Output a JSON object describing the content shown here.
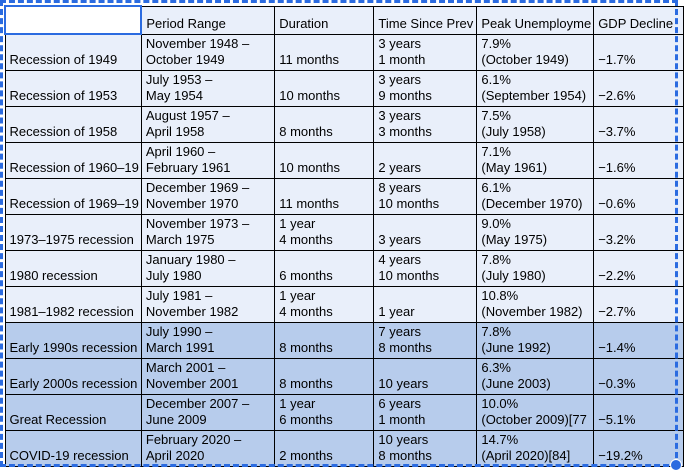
{
  "ui": {
    "selection_accent_color": "#2B6BE0",
    "light_row_fill": "#E9EFFA",
    "dark_selected_row_fill": "#B7CCEC",
    "grid_color": "#000000",
    "active_cell_value": "",
    "fill_handle": "selection-fill-handle"
  },
  "table": {
    "headers": [
      "",
      "Period Range",
      "Duration",
      "Time Since Prev",
      "Peak Unemployme",
      "GDP Decline"
    ],
    "rows": [
      {
        "dark": false,
        "cells": [
          "Recession of 1949",
          "November 1948 –\nOctober 1949",
          "11 months",
          "3 years\n1 month",
          "7.9%\n(October 1949)",
          "−1.7%"
        ]
      },
      {
        "dark": false,
        "cells": [
          "Recession of 1953",
          "July 1953 –\nMay 1954",
          "10 months",
          "3 years\n9 months",
          "6.1%\n(September 1954)",
          "−2.6%"
        ]
      },
      {
        "dark": false,
        "cells": [
          "Recession of 1958",
          "August 1957 –\nApril 1958",
          "8 months",
          "3 years\n3 months",
          "7.5%\n(July 1958)",
          "−3.7%"
        ]
      },
      {
        "dark": false,
        "cells": [
          "Recession of 1960–19",
          "April 1960 –\nFebruary 1961",
          "10 months",
          "2 years",
          "7.1%\n(May 1961)",
          "−1.6%"
        ]
      },
      {
        "dark": false,
        "cells": [
          "Recession of 1969–19",
          "December 1969 –\nNovember 1970",
          "11 months",
          "8 years\n10 months",
          "6.1%\n(December 1970)",
          "−0.6%"
        ]
      },
      {
        "dark": false,
        "cells": [
          "1973–1975 recession",
          "November 1973 –\nMarch 1975",
          "1 year\n4 months",
          "3 years",
          "9.0%\n(May 1975)",
          "−3.2%"
        ]
      },
      {
        "dark": false,
        "cells": [
          "1980 recession",
          "January 1980 –\nJuly 1980",
          "6 months",
          "4 years\n10 months",
          "7.8%\n(July 1980)",
          "−2.2%"
        ]
      },
      {
        "dark": false,
        "cells": [
          "1981–1982 recession",
          "July 1981 –\nNovember 1982",
          "1 year\n4 months",
          "1 year",
          "10.8%\n(November 1982)",
          "−2.7%"
        ]
      },
      {
        "dark": true,
        "cells": [
          "Early 1990s recession",
          "July 1990 –\nMarch 1991",
          "8 months",
          "7 years\n8 months",
          "7.8%\n(June 1992)",
          "−1.4%"
        ]
      },
      {
        "dark": true,
        "cells": [
          "Early 2000s recession",
          "March 2001 –\nNovember 2001",
          "8 months",
          "10 years",
          "6.3%\n(June 2003)",
          "−0.3%"
        ]
      },
      {
        "dark": true,
        "cells": [
          "Great Recession",
          "December 2007 –\nJune 2009",
          "1 year\n6 months",
          "6 years\n1 month",
          "10.0%\n(October 2009)[77",
          "−5.1%"
        ]
      },
      {
        "dark": true,
        "cells": [
          "COVID-19 recession",
          "February 2020 –\nApril 2020",
          "2 months",
          "10 years\n8 months",
          "14.7%\n(April 2020)[84]",
          "−19.2%"
        ]
      }
    ]
  }
}
